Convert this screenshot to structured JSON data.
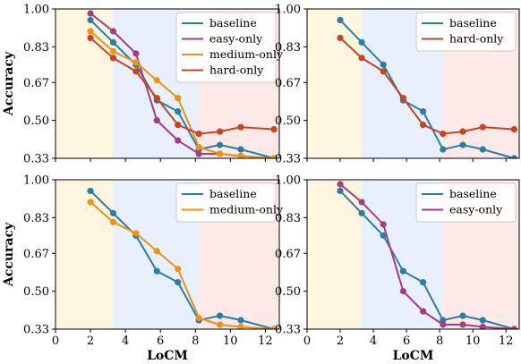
{
  "colors": {
    "baseline": "#2a7ea6",
    "easy-only": "#a63d82",
    "medium-only": "#ee9214",
    "hard-only": "#c8431e",
    "band_easy": "#fdf6df",
    "band_medium": "#e8effd",
    "band_hard": "#fde9e8"
  },
  "chart_data": [
    {
      "type": "line",
      "xlabel": "",
      "ylabel": "Accuracy",
      "xlim": [
        0,
        12.8
      ],
      "ylim": [
        0.33,
        1.0
      ],
      "xticks": [
        0,
        2,
        4,
        6,
        8,
        10,
        12
      ],
      "yticks": [
        "0.33",
        "0.50",
        "0.67",
        "0.83",
        "1.00"
      ],
      "bands": [
        {
          "name": "easy",
          "x0": 0,
          "x1": 3.3
        },
        {
          "name": "medium",
          "x0": 3.3,
          "x1": 8.2
        },
        {
          "name": "hard",
          "x0": 8.2,
          "x1": 12.8
        }
      ],
      "legend": "top-right",
      "series": [
        {
          "name": "baseline",
          "x": [
            2,
            3.3,
            4.6,
            5.8,
            7.0,
            8.2,
            9.4,
            10.6,
            12.5
          ],
          "y": [
            0.95,
            0.85,
            0.75,
            0.59,
            0.54,
            0.37,
            0.39,
            0.37,
            0.33
          ]
        },
        {
          "name": "easy-only",
          "x": [
            2,
            3.3,
            4.6,
            5.8,
            7.0,
            8.2,
            9.4,
            10.6,
            12.5
          ],
          "y": [
            0.98,
            0.9,
            0.8,
            0.5,
            0.41,
            0.35,
            0.35,
            0.34,
            0.33
          ]
        },
        {
          "name": "medium-only",
          "x": [
            2,
            3.3,
            4.6,
            5.8,
            7.0,
            8.2,
            9.4,
            10.6,
            12.5
          ],
          "y": [
            0.9,
            0.81,
            0.76,
            0.68,
            0.6,
            0.38,
            0.35,
            0.34,
            0.33
          ]
        },
        {
          "name": "hard-only",
          "x": [
            2,
            3.3,
            4.6,
            5.8,
            7.0,
            8.2,
            9.4,
            10.6,
            12.5
          ],
          "y": [
            0.87,
            0.78,
            0.72,
            0.6,
            0.48,
            0.44,
            0.45,
            0.47,
            0.46
          ]
        }
      ]
    },
    {
      "type": "line",
      "xlabel": "",
      "ylabel": "",
      "xlim": [
        0,
        12.8
      ],
      "ylim": [
        0.33,
        1.0
      ],
      "xticks": [
        0,
        2,
        4,
        6,
        8,
        10,
        12
      ],
      "yticks": [
        "0.33",
        "0.50",
        "0.67",
        "0.83",
        "1.00"
      ],
      "bands": [
        {
          "name": "easy",
          "x0": 0,
          "x1": 3.3
        },
        {
          "name": "medium",
          "x0": 3.3,
          "x1": 8.2
        },
        {
          "name": "hard",
          "x0": 8.2,
          "x1": 12.8
        }
      ],
      "legend": "top-right",
      "series": [
        {
          "name": "baseline",
          "x": [
            2,
            3.3,
            4.6,
            5.8,
            7.0,
            8.2,
            9.4,
            10.6,
            12.5
          ],
          "y": [
            0.95,
            0.85,
            0.75,
            0.59,
            0.54,
            0.37,
            0.39,
            0.37,
            0.33
          ]
        },
        {
          "name": "hard-only",
          "x": [
            2,
            3.3,
            4.6,
            5.8,
            7.0,
            8.2,
            9.4,
            10.6,
            12.5
          ],
          "y": [
            0.87,
            0.78,
            0.72,
            0.6,
            0.48,
            0.44,
            0.45,
            0.47,
            0.46
          ]
        }
      ]
    },
    {
      "type": "line",
      "xlabel": "LoCM",
      "ylabel": "Accuracy",
      "xlim": [
        0,
        12.8
      ],
      "ylim": [
        0.33,
        1.0
      ],
      "xticks": [
        0,
        2,
        4,
        6,
        8,
        10,
        12
      ],
      "yticks": [
        "0.33",
        "0.50",
        "0.67",
        "0.83",
        "1.00"
      ],
      "bands": [
        {
          "name": "easy",
          "x0": 0,
          "x1": 3.3
        },
        {
          "name": "medium",
          "x0": 3.3,
          "x1": 8.2
        },
        {
          "name": "hard",
          "x0": 8.2,
          "x1": 12.8
        }
      ],
      "legend": "top-right",
      "series": [
        {
          "name": "baseline",
          "x": [
            2,
            3.3,
            4.6,
            5.8,
            7.0,
            8.2,
            9.4,
            10.6,
            12.5
          ],
          "y": [
            0.95,
            0.85,
            0.75,
            0.59,
            0.54,
            0.37,
            0.39,
            0.37,
            0.33
          ]
        },
        {
          "name": "medium-only",
          "x": [
            2,
            3.3,
            4.6,
            5.8,
            7.0,
            8.2,
            9.4,
            10.6,
            12.5
          ],
          "y": [
            0.9,
            0.81,
            0.76,
            0.68,
            0.6,
            0.38,
            0.35,
            0.34,
            0.33
          ]
        }
      ]
    },
    {
      "type": "line",
      "xlabel": "LoCM",
      "ylabel": "",
      "xlim": [
        0,
        12.8
      ],
      "ylim": [
        0.33,
        1.0
      ],
      "xticks": [
        0,
        2,
        4,
        6,
        8,
        10,
        12
      ],
      "yticks": [
        "0.33",
        "0.50",
        "0.67",
        "0.83",
        "1.00"
      ],
      "bands": [
        {
          "name": "easy",
          "x0": 0,
          "x1": 3.3
        },
        {
          "name": "medium",
          "x0": 3.3,
          "x1": 8.2
        },
        {
          "name": "hard",
          "x0": 8.2,
          "x1": 12.8
        }
      ],
      "legend": "top-right",
      "series": [
        {
          "name": "baseline",
          "x": [
            2,
            3.3,
            4.6,
            5.8,
            7.0,
            8.2,
            9.4,
            10.6,
            12.5
          ],
          "y": [
            0.95,
            0.85,
            0.75,
            0.59,
            0.54,
            0.37,
            0.39,
            0.37,
            0.33
          ]
        },
        {
          "name": "easy-only",
          "x": [
            2,
            3.3,
            4.6,
            5.8,
            7.0,
            8.2,
            9.4,
            10.6,
            12.5
          ],
          "y": [
            0.98,
            0.9,
            0.8,
            0.5,
            0.41,
            0.35,
            0.35,
            0.34,
            0.33
          ]
        }
      ]
    }
  ]
}
